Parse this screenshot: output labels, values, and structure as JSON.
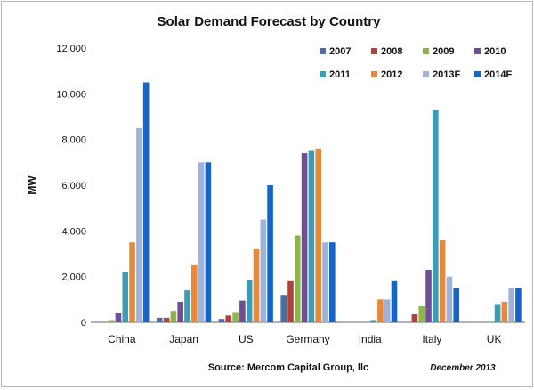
{
  "chart_data": {
    "type": "bar",
    "title": "Solar Demand Forecast by Country",
    "ylabel": "MW",
    "xlabel": "",
    "ylim": [
      0,
      12000
    ],
    "yticks": [
      "0",
      "2,000",
      "4,000",
      "6,000",
      "8,000",
      "10,000",
      "12,000"
    ],
    "grid": false,
    "legend_placement": "top-right",
    "categories": [
      "China",
      "Japan",
      "US",
      "Germany",
      "India",
      "Italy",
      "UK"
    ],
    "series": [
      {
        "name": "2007",
        "color": "#4a6fa5",
        "values": [
          0,
          200,
          150,
          1200,
          0,
          0,
          0
        ]
      },
      {
        "name": "2008",
        "color": "#b0413e",
        "values": [
          0,
          200,
          300,
          1800,
          0,
          350,
          0
        ]
      },
      {
        "name": "2009",
        "color": "#8db54a",
        "values": [
          100,
          500,
          450,
          3800,
          0,
          700,
          0
        ]
      },
      {
        "name": "2010",
        "color": "#6f4f93",
        "values": [
          400,
          900,
          950,
          7400,
          0,
          2300,
          0
        ]
      },
      {
        "name": "2011",
        "color": "#3c9cb5",
        "values": [
          2200,
          1400,
          1850,
          7500,
          100,
          9300,
          800
        ]
      },
      {
        "name": "2012",
        "color": "#e8893a",
        "values": [
          3500,
          2500,
          3200,
          7600,
          1000,
          3600,
          900
        ]
      },
      {
        "name": "2013F",
        "color": "#9fb3d9",
        "values": [
          8500,
          7000,
          4500,
          3500,
          1000,
          2000,
          1500
        ]
      },
      {
        "name": "2014F",
        "color": "#1565c8",
        "values": [
          10500,
          7000,
          6000,
          3500,
          1800,
          1500,
          1500
        ]
      }
    ],
    "source": "Source: Mercom Capital Group, llc",
    "date": "December  2013"
  }
}
